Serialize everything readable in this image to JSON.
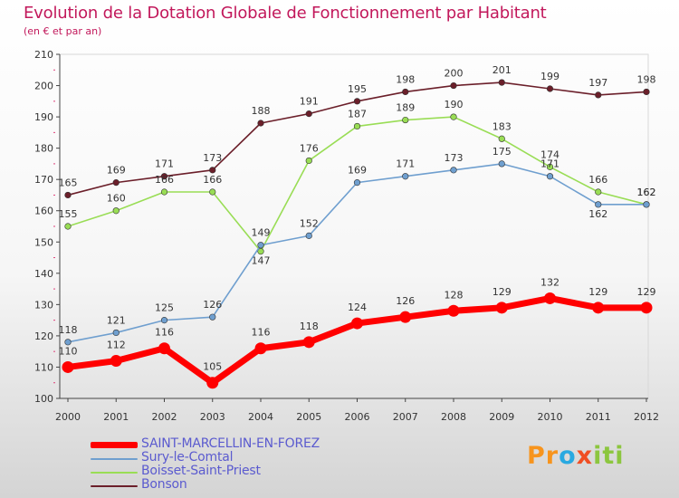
{
  "chart_data": {
    "type": "line",
    "title": "Evolution de la Dotation Globale de Fonctionnement par Habitant",
    "subtitle": "(en € et par an)",
    "xlabel": "",
    "ylabel": "",
    "categories": [
      "2000",
      "2001",
      "2002",
      "2003",
      "2004",
      "2005",
      "2006",
      "2007",
      "2008",
      "2009",
      "2010",
      "2011",
      "2012"
    ],
    "ylim": [
      100,
      210
    ],
    "yticks": [
      100,
      110,
      120,
      130,
      140,
      150,
      160,
      170,
      180,
      190,
      200,
      210
    ],
    "grid": false,
    "legend_position": "bottom-left",
    "series": [
      {
        "name": "Bonson",
        "color": "#6b1f2a",
        "values": [
          165,
          169,
          171,
          173,
          188,
          191,
          195,
          198,
          200,
          201,
          199,
          197,
          198
        ]
      },
      {
        "name": "Boisset-Saint-Priest",
        "color": "#99dd55",
        "values": [
          155,
          160,
          166,
          166,
          147,
          176,
          187,
          189,
          190,
          183,
          174,
          166,
          162
        ]
      },
      {
        "name": "Sury-le-Comtal",
        "color": "#6f9fcf",
        "values": [
          118,
          121,
          125,
          126,
          149,
          152,
          169,
          171,
          173,
          175,
          171,
          162,
          162
        ]
      },
      {
        "name": "SAINT-MARCELLIN-EN-FOREZ",
        "color": "#ff0000",
        "values": [
          110,
          112,
          116,
          105,
          116,
          118,
          124,
          126,
          128,
          129,
          132,
          129,
          129
        ]
      }
    ]
  },
  "legend": {
    "items": [
      {
        "label": "SAINT-MARCELLIN-EN-FOREZ",
        "color": "#ff0000"
      },
      {
        "label": "Sury-le-Comtal",
        "color": "#6f9fcf"
      },
      {
        "label": "Boisset-Saint-Priest",
        "color": "#99dd55"
      },
      {
        "label": "Bonson",
        "color": "#6b1f2a"
      }
    ]
  },
  "logo": {
    "text": "Proxiti",
    "parts": [
      "Pr",
      "o",
      "x",
      "iti"
    ]
  }
}
